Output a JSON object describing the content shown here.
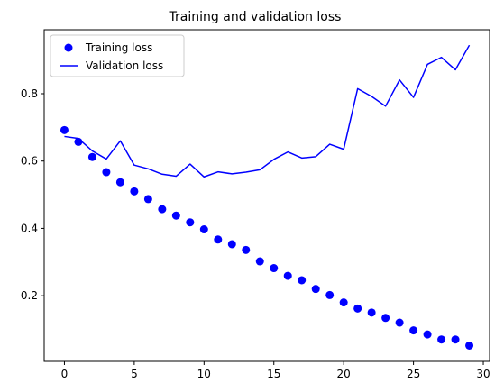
{
  "chart_data": {
    "type": "line",
    "title": "Training and validation loss",
    "xlabel": "",
    "ylabel": "",
    "xlim": [
      -1.45,
      30.45
    ],
    "ylim": [
      0.005,
      0.99
    ],
    "x_ticks": [
      0,
      5,
      10,
      15,
      20,
      25,
      30
    ],
    "y_ticks": [
      0.2,
      0.4,
      0.6,
      0.8
    ],
    "grid": false,
    "legend_position": "top-left",
    "series": [
      {
        "name": "Training loss",
        "style": "markers",
        "color": "#0000ff",
        "x": [
          0,
          1,
          2,
          3,
          4,
          5,
          6,
          7,
          8,
          9,
          10,
          11,
          12,
          13,
          14,
          15,
          16,
          17,
          18,
          19,
          20,
          21,
          22,
          23,
          24,
          25,
          26,
          27,
          28,
          29
        ],
        "values": [
          0.692,
          0.657,
          0.612,
          0.567,
          0.537,
          0.51,
          0.487,
          0.457,
          0.438,
          0.418,
          0.397,
          0.367,
          0.353,
          0.336,
          0.302,
          0.282,
          0.259,
          0.246,
          0.22,
          0.202,
          0.18,
          0.162,
          0.15,
          0.134,
          0.12,
          0.097,
          0.085,
          0.07,
          0.07,
          0.052
        ]
      },
      {
        "name": "Validation loss",
        "style": "line",
        "color": "#0000ff",
        "x": [
          0,
          1,
          2,
          3,
          4,
          5,
          6,
          7,
          8,
          9,
          10,
          11,
          12,
          13,
          14,
          15,
          16,
          17,
          18,
          19,
          20,
          21,
          22,
          23,
          24,
          25,
          26,
          27,
          28,
          29
        ],
        "values": [
          0.673,
          0.667,
          0.63,
          0.606,
          0.66,
          0.588,
          0.577,
          0.561,
          0.555,
          0.591,
          0.553,
          0.568,
          0.562,
          0.567,
          0.574,
          0.605,
          0.627,
          0.609,
          0.613,
          0.65,
          0.635,
          0.815,
          0.792,
          0.763,
          0.841,
          0.789,
          0.887,
          0.908,
          0.871,
          0.944
        ]
      }
    ]
  }
}
